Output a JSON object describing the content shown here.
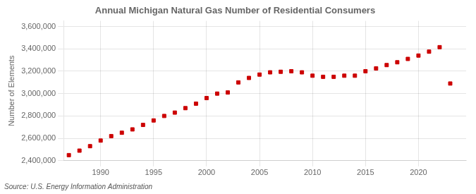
{
  "chart_data": {
    "type": "scatter",
    "title": "Annual Michigan Natural Gas Number of Residential Consumers",
    "ylabel": "Number of Elements",
    "annotation": "Source: U.S. Energy Information Administration",
    "color": "#cc0000",
    "marker": "square",
    "grid": true,
    "xlim": [
      1986.5,
      2024.5
    ],
    "xticks": [
      1990,
      1995,
      2000,
      2005,
      2010,
      2015,
      2020
    ],
    "ylim": [
      2400000,
      3650000
    ],
    "yticks": [
      {
        "value": 2400000,
        "label": "2,400,000"
      },
      {
        "value": 2600000,
        "label": "2,600,000"
      },
      {
        "value": 2800000,
        "label": "2,800,000"
      },
      {
        "value": 3000000,
        "label": "3,000,000"
      },
      {
        "value": 3200000,
        "label": "3,200,000"
      },
      {
        "value": 3400000,
        "label": "3,400,000"
      },
      {
        "value": 3600000,
        "label": "3,600,000"
      }
    ],
    "x": [
      1987,
      1988,
      1989,
      1990,
      1991,
      1992,
      1993,
      1994,
      1995,
      1996,
      1997,
      1998,
      1999,
      2000,
      2001,
      2002,
      2003,
      2004,
      2005,
      2006,
      2007,
      2008,
      2009,
      2010,
      2011,
      2012,
      2013,
      2014,
      2015,
      2016,
      2017,
      2018,
      2019,
      2020,
      2021,
      2022,
      2023
    ],
    "values": [
      2450000,
      2490000,
      2530000,
      2580000,
      2620000,
      2650000,
      2680000,
      2720000,
      2760000,
      2800000,
      2830000,
      2870000,
      2910000,
      2960000,
      3000000,
      3010000,
      3100000,
      3140000,
      3170000,
      3190000,
      3195000,
      3200000,
      3190000,
      3160000,
      3150000,
      3150000,
      3160000,
      3160000,
      3200000,
      3225000,
      3255000,
      3280000,
      3310000,
      3340000,
      3375000,
      3415000,
      3090000
    ]
  }
}
